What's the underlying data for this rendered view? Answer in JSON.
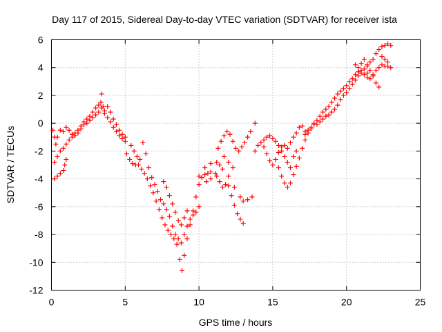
{
  "chart_data": {
    "type": "scatter",
    "title": "Day 117 of 2015, Sidereal Day-to-day VTEC variation (SDTVAR) for receiver ista",
    "xlabel": "GPS time / hours",
    "ylabel": "SDTVAR / TECUs",
    "xlim": [
      0,
      25
    ],
    "ylim": [
      -12,
      6
    ],
    "xticks": [
      "0",
      "5",
      "10",
      "15",
      "20",
      "25"
    ],
    "yticks": [
      "-12",
      "-10",
      "-8",
      "-6",
      "-4",
      "-2",
      "0",
      "2",
      "4",
      "6"
    ],
    "grid": true,
    "marker": "+",
    "series": [
      {
        "color": "#ff0000",
        "points": [
          [
            0.1,
            -0.5
          ],
          [
            0.2,
            -1.0
          ],
          [
            0.3,
            -1.5
          ],
          [
            0.4,
            -1.0
          ],
          [
            0.6,
            -0.5
          ],
          [
            0.8,
            -0.6
          ],
          [
            1.0,
            -0.3
          ],
          [
            1.2,
            -0.5
          ],
          [
            1.4,
            -0.8
          ],
          [
            1.6,
            -0.9
          ],
          [
            1.8,
            -0.7
          ],
          [
            2.0,
            -0.4
          ],
          [
            2.2,
            -0.1
          ],
          [
            2.4,
            0.0
          ],
          [
            2.6,
            0.2
          ],
          [
            2.8,
            0.4
          ],
          [
            3.0,
            0.6
          ],
          [
            3.2,
            0.8
          ],
          [
            3.35,
            1.5
          ],
          [
            3.4,
            2.1
          ],
          [
            3.5,
            1.2
          ],
          [
            3.6,
            0.7
          ],
          [
            3.8,
            0.4
          ],
          [
            4.0,
            0.1
          ],
          [
            4.2,
            -0.3
          ],
          [
            4.4,
            -0.6
          ],
          [
            4.6,
            -0.9
          ],
          [
            4.8,
            -1.1
          ],
          [
            5.0,
            -1.3
          ],
          [
            0.2,
            -2.8
          ],
          [
            0.4,
            -2.4
          ],
          [
            0.6,
            -2.0
          ],
          [
            0.8,
            -1.8
          ],
          [
            1.0,
            -1.5
          ],
          [
            1.2,
            -1.2
          ],
          [
            1.4,
            -1.0
          ],
          [
            1.6,
            -0.7
          ],
          [
            1.8,
            -0.5
          ],
          [
            2.0,
            -0.2
          ],
          [
            2.2,
            0.1
          ],
          [
            2.4,
            0.3
          ],
          [
            2.6,
            0.5
          ],
          [
            2.8,
            0.8
          ],
          [
            3.0,
            1.1
          ],
          [
            3.2,
            1.3
          ],
          [
            3.4,
            1.1
          ],
          [
            3.6,
            0.9
          ],
          [
            3.8,
            1.2
          ],
          [
            4.0,
            0.8
          ],
          [
            4.2,
            0.3
          ],
          [
            4.4,
            -0.1
          ],
          [
            4.6,
            -0.5
          ],
          [
            4.8,
            -0.8
          ],
          [
            5.0,
            -1.0
          ],
          [
            0.2,
            -4.0
          ],
          [
            0.4,
            -3.8
          ],
          [
            0.6,
            -3.6
          ],
          [
            0.8,
            -3.4
          ],
          [
            0.9,
            -3.0
          ],
          [
            1.0,
            -2.6
          ],
          [
            5.1,
            -2.2
          ],
          [
            5.3,
            -2.6
          ],
          [
            5.5,
            -2.9
          ],
          [
            5.7,
            -3.0
          ],
          [
            5.9,
            -3.0
          ],
          [
            6.1,
            -3.3
          ],
          [
            6.3,
            -3.6
          ],
          [
            6.5,
            -4.0
          ],
          [
            6.7,
            -4.5
          ],
          [
            6.9,
            -5.0
          ],
          [
            7.1,
            -5.6
          ],
          [
            7.3,
            -6.2
          ],
          [
            7.5,
            -6.8
          ],
          [
            7.7,
            -7.3
          ],
          [
            7.9,
            -7.7
          ],
          [
            8.1,
            -8.0
          ],
          [
            8.3,
            -8.3
          ],
          [
            8.5,
            -8.7
          ],
          [
            8.7,
            -9.8
          ],
          [
            8.85,
            -10.6
          ],
          [
            9.0,
            -9.5
          ],
          [
            9.2,
            -8.3
          ],
          [
            9.4,
            -7.3
          ],
          [
            9.6,
            -6.3
          ],
          [
            9.8,
            -5.3
          ],
          [
            10.0,
            -4.4
          ],
          [
            10.2,
            -3.9
          ],
          [
            10.4,
            -3.7
          ],
          [
            10.6,
            -3.6
          ],
          [
            10.8,
            -3.5
          ],
          [
            5.4,
            -1.6
          ],
          [
            5.6,
            -2.0
          ],
          [
            5.8,
            -2.4
          ],
          [
            6.0,
            -2.6
          ],
          [
            6.2,
            -1.4
          ],
          [
            6.4,
            -2.2
          ],
          [
            6.6,
            -3.2
          ],
          [
            6.8,
            -3.9
          ],
          [
            7.0,
            -4.4
          ],
          [
            7.2,
            -4.9
          ],
          [
            7.4,
            -5.5
          ],
          [
            7.6,
            -5.8
          ],
          [
            7.8,
            -6.2
          ],
          [
            8.0,
            -6.7
          ],
          [
            8.2,
            -7.4
          ],
          [
            8.4,
            -8.0
          ],
          [
            8.6,
            -8.3
          ],
          [
            8.8,
            -8.6
          ],
          [
            9.0,
            -8.0
          ],
          [
            9.2,
            -7.4
          ],
          [
            9.4,
            -6.9
          ],
          [
            9.6,
            -6.6
          ],
          [
            9.8,
            -6.4
          ],
          [
            10.0,
            -6.0
          ],
          [
            7.6,
            -4.2
          ],
          [
            7.8,
            -4.6
          ],
          [
            8.0,
            -5.2
          ],
          [
            8.2,
            -5.8
          ],
          [
            8.4,
            -6.4
          ],
          [
            8.6,
            -7.0
          ],
          [
            8.8,
            -7.3
          ],
          [
            9.0,
            -6.8
          ],
          [
            9.2,
            -6.3
          ],
          [
            10.0,
            -3.8
          ],
          [
            10.4,
            -3.2
          ],
          [
            10.8,
            -2.9
          ],
          [
            11.2,
            -2.8
          ],
          [
            11.6,
            -3.3
          ],
          [
            12.0,
            -3.8
          ],
          [
            12.4,
            -4.6
          ],
          [
            12.8,
            -5.3
          ],
          [
            13.0,
            -5.6
          ],
          [
            13.3,
            -5.5
          ],
          [
            13.6,
            -5.3
          ],
          [
            11.2,
            -3.8
          ],
          [
            11.4,
            -4.2
          ],
          [
            11.6,
            -4.6
          ],
          [
            11.8,
            -4.4
          ],
          [
            12.0,
            -4.5
          ],
          [
            12.2,
            -5.2
          ],
          [
            12.4,
            -5.9
          ],
          [
            12.6,
            -6.5
          ],
          [
            12.8,
            -6.9
          ],
          [
            13.0,
            -7.2
          ],
          [
            11.3,
            -1.8
          ],
          [
            11.5,
            -1.3
          ],
          [
            11.7,
            -0.9
          ],
          [
            11.9,
            -0.6
          ],
          [
            12.1,
            -0.8
          ],
          [
            12.3,
            -1.3
          ],
          [
            12.5,
            -1.8
          ],
          [
            12.7,
            -2.0
          ],
          [
            12.9,
            -1.7
          ],
          [
            13.1,
            -1.4
          ],
          [
            13.3,
            -1.0
          ],
          [
            13.5,
            -0.6
          ],
          [
            13.8,
            0.0
          ],
          [
            10.5,
            -4.2
          ],
          [
            10.8,
            -4.0
          ],
          [
            11.1,
            -3.6
          ],
          [
            11.4,
            -3.0
          ],
          [
            11.7,
            -2.4
          ],
          [
            12.0,
            -2.8
          ],
          [
            12.3,
            -3.2
          ],
          [
            13.8,
            -2.0
          ],
          [
            14.0,
            -1.6
          ],
          [
            14.2,
            -1.4
          ],
          [
            14.4,
            -1.7
          ],
          [
            14.6,
            -2.2
          ],
          [
            14.8,
            -2.7
          ],
          [
            15.0,
            -3.0
          ],
          [
            15.2,
            -2.6
          ],
          [
            15.4,
            -2.1
          ],
          [
            15.6,
            -1.7
          ],
          [
            15.8,
            -1.6
          ],
          [
            16.0,
            -1.8
          ],
          [
            16.2,
            -1.4
          ],
          [
            16.4,
            -1.0
          ],
          [
            16.6,
            -0.7
          ],
          [
            16.8,
            -0.3
          ],
          [
            17.0,
            -0.2
          ],
          [
            17.2,
            -0.6
          ],
          [
            14.4,
            -1.2
          ],
          [
            14.6,
            -1.0
          ],
          [
            14.8,
            -0.9
          ],
          [
            15.0,
            -1.1
          ],
          [
            15.2,
            -1.3
          ],
          [
            15.4,
            -1.6
          ],
          [
            15.6,
            -2.0
          ],
          [
            15.8,
            -2.4
          ],
          [
            16.0,
            -2.8
          ],
          [
            16.2,
            -3.2
          ],
          [
            16.4,
            -2.4
          ],
          [
            16.6,
            -2.0
          ],
          [
            15.4,
            -3.2
          ],
          [
            15.6,
            -3.8
          ],
          [
            15.8,
            -4.3
          ],
          [
            16.0,
            -4.6
          ],
          [
            16.2,
            -4.3
          ],
          [
            16.4,
            -3.7
          ],
          [
            16.6,
            -3.1
          ],
          [
            16.8,
            -2.5
          ],
          [
            17.0,
            -1.8
          ],
          [
            17.2,
            -1.2
          ],
          [
            17.4,
            -0.7
          ],
          [
            17.6,
            -0.4
          ],
          [
            17.8,
            -0.1
          ],
          [
            18.0,
            0.2
          ],
          [
            18.2,
            0.5
          ],
          [
            18.4,
            0.8
          ],
          [
            18.6,
            1.0
          ],
          [
            18.8,
            1.2
          ],
          [
            19.0,
            1.5
          ],
          [
            19.2,
            1.8
          ],
          [
            19.4,
            2.1
          ],
          [
            19.6,
            2.3
          ],
          [
            19.8,
            2.5
          ],
          [
            20.0,
            2.7
          ],
          [
            20.2,
            3.0
          ],
          [
            20.4,
            3.2
          ],
          [
            20.6,
            3.5
          ],
          [
            20.8,
            3.7
          ],
          [
            21.0,
            3.8
          ],
          [
            21.2,
            3.9
          ],
          [
            21.4,
            4.1
          ],
          [
            21.6,
            4.4
          ],
          [
            21.8,
            4.6
          ],
          [
            22.0,
            5.0
          ],
          [
            22.2,
            5.3
          ],
          [
            22.4,
            5.5
          ],
          [
            22.6,
            5.6
          ],
          [
            22.8,
            5.7
          ],
          [
            23.0,
            5.6
          ],
          [
            17.2,
            -0.8
          ],
          [
            17.4,
            -0.5
          ],
          [
            17.6,
            -0.3
          ],
          [
            17.8,
            0.0
          ],
          [
            18.0,
            -0.1
          ],
          [
            18.2,
            0.1
          ],
          [
            18.4,
            0.3
          ],
          [
            18.6,
            0.5
          ],
          [
            18.8,
            0.6
          ],
          [
            19.0,
            0.8
          ],
          [
            19.2,
            1.0
          ],
          [
            19.4,
            1.3
          ],
          [
            19.6,
            1.7
          ],
          [
            19.8,
            2.0
          ],
          [
            20.0,
            2.2
          ],
          [
            20.2,
            2.5
          ],
          [
            20.4,
            2.8
          ],
          [
            20.6,
            3.1
          ],
          [
            20.8,
            3.4
          ],
          [
            21.0,
            3.6
          ],
          [
            21.2,
            3.5
          ],
          [
            21.4,
            3.3
          ],
          [
            21.6,
            3.2
          ],
          [
            21.8,
            3.5
          ],
          [
            22.0,
            3.8
          ],
          [
            22.2,
            4.0
          ],
          [
            22.4,
            4.2
          ],
          [
            22.6,
            4.1
          ],
          [
            22.8,
            4.1
          ],
          [
            23.0,
            4.0
          ],
          [
            20.6,
            4.2
          ],
          [
            20.8,
            4.0
          ],
          [
            21.0,
            4.3
          ],
          [
            21.2,
            4.6
          ],
          [
            21.4,
            4.2
          ],
          [
            21.6,
            3.8
          ],
          [
            21.8,
            3.4
          ],
          [
            22.0,
            2.9
          ],
          [
            22.2,
            2.6
          ],
          [
            21.4,
            3.6
          ],
          [
            22.4,
            4.8
          ],
          [
            22.6,
            4.6
          ],
          [
            22.8,
            4.4
          ]
        ]
      }
    ]
  }
}
